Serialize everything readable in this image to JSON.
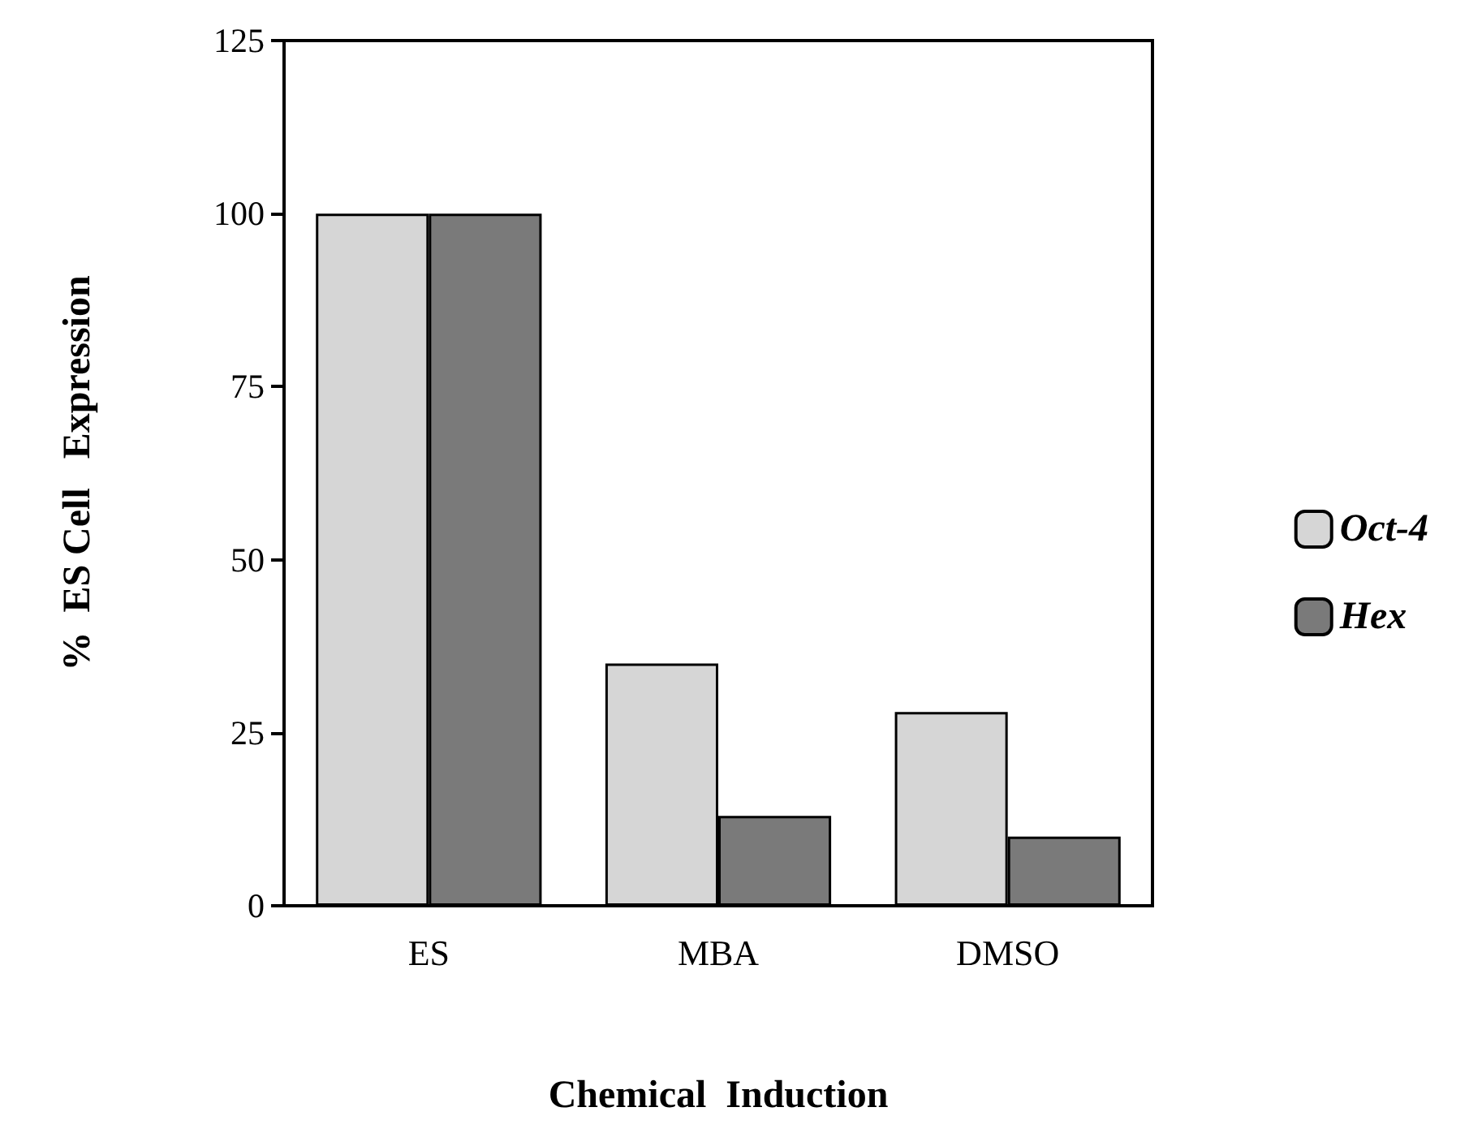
{
  "chart_data": {
    "type": "bar",
    "xlabel": "Chemical  Induction",
    "ylabel": "%  ES Cell   Expression",
    "categories": [
      "ES",
      "MBA",
      "DMSO"
    ],
    "series": [
      {
        "name": "Oct-4",
        "color": "#d6d6d6",
        "values": [
          100,
          35,
          28
        ]
      },
      {
        "name": "Hex",
        "color": "#7a7a7a",
        "values": [
          100,
          13,
          10
        ]
      }
    ],
    "ylim": [
      0,
      125
    ],
    "yticks": [
      0,
      25,
      50,
      75,
      100,
      125
    ],
    "grid": false,
    "legend": "right"
  }
}
